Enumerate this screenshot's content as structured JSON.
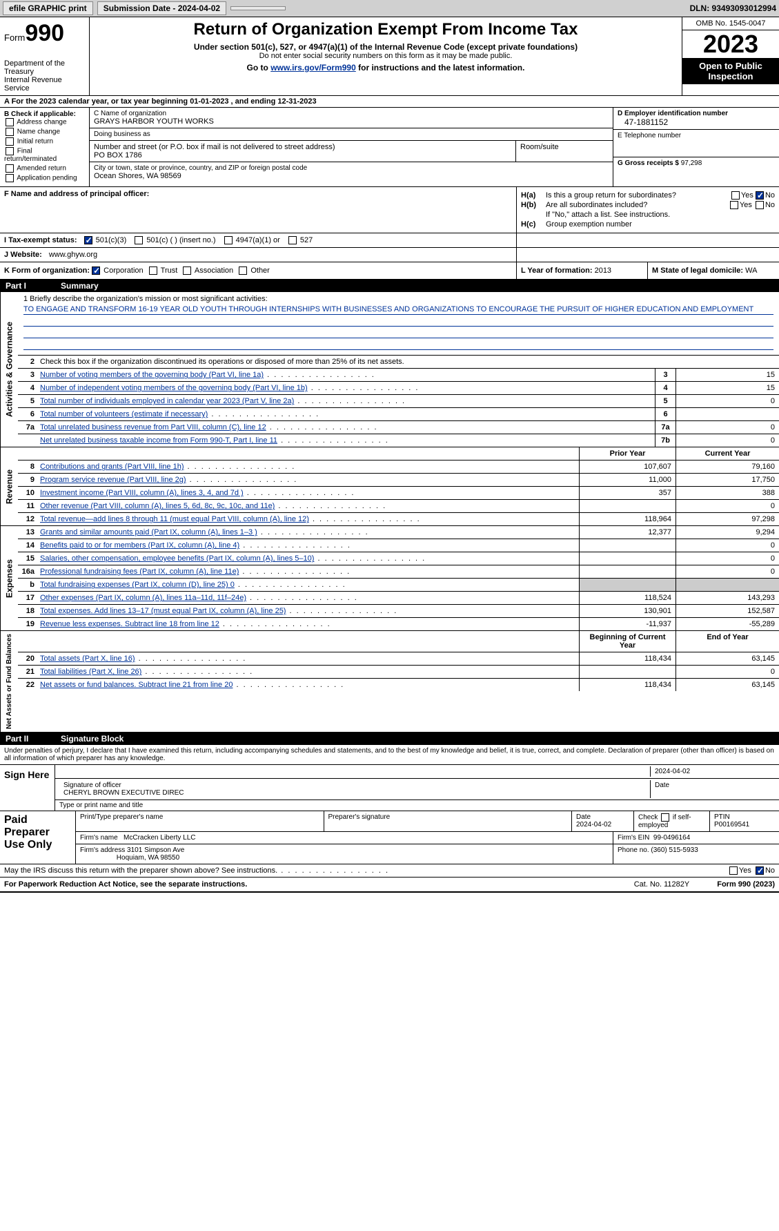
{
  "topbar": {
    "efile": "efile GRAPHIC print",
    "submission": "Submission Date - 2024-04-02",
    "dln": "DLN: 93493093012994"
  },
  "header": {
    "form_label": "Form",
    "form_num": "990",
    "dept": "Department of the Treasury\nInternal Revenue Service",
    "title": "Return of Organization Exempt From Income Tax",
    "sub1": "Under section 501(c), 527, or 4947(a)(1) of the Internal Revenue Code (except private foundations)",
    "sub2": "Do not enter social security numbers on this form as it may be made public.",
    "sub3_pre": "Go to ",
    "sub3_link": "www.irs.gov/Form990",
    "sub3_post": " for instructions and the latest information.",
    "omb": "OMB No. 1545-0047",
    "year": "2023",
    "open": "Open to Public Inspection"
  },
  "lineA": "A For the 2023 calendar year, or tax year beginning 01-01-2023    , and ending 12-31-2023",
  "sectionB": {
    "title": "B Check if applicable:",
    "items": [
      "Address change",
      "Name change",
      "Initial return",
      "Final return/terminated",
      "Amended return",
      "Application pending"
    ]
  },
  "sectionC": {
    "name_label": "C Name of organization",
    "name": "GRAYS HARBOR YOUTH WORKS",
    "dba_label": "Doing business as",
    "dba": "",
    "street_label": "Number and street (or P.O. box if mail is not delivered to street address)",
    "street": "PO BOX 1786",
    "room_label": "Room/suite",
    "room": "",
    "city_label": "City or town, state or province, country, and ZIP or foreign postal code",
    "city": "Ocean Shores, WA   98569"
  },
  "sectionD": {
    "ein_label": "D Employer identification number",
    "ein": "47-1881152",
    "tel_label": "E Telephone number",
    "tel": "",
    "gross_label": "G Gross receipts $",
    "gross": "97,298"
  },
  "sectionF": {
    "label": "F  Name and address of principal officer:",
    "value": ""
  },
  "sectionH": {
    "a_lbl": "H(a)",
    "a_txt": "Is this a group return for subordinates?",
    "a_no_checked": true,
    "b_lbl": "H(b)",
    "b_txt": "Are all subordinates included?",
    "b_note": "If \"No,\" attach a list. See instructions.",
    "c_lbl": "H(c)",
    "c_txt": "Group exemption number"
  },
  "sectionI": {
    "label": "I     Tax-exempt status:",
    "c3": "501(c)(3)",
    "c": "501(c) (  ) (insert no.)",
    "a1": "4947(a)(1) or",
    "s527": "527"
  },
  "sectionJ": {
    "label": "J     Website:",
    "value": "www.ghyw.org"
  },
  "sectionK": {
    "label": "K Form of organization:",
    "corp": "Corporation",
    "trust": "Trust",
    "assoc": "Association",
    "other": "Other"
  },
  "sectionL": {
    "label": "L Year of formation:",
    "value": "2013"
  },
  "sectionM": {
    "label": "M State of legal domicile:",
    "value": "WA"
  },
  "partI": {
    "num": "Part I",
    "title": "Summary"
  },
  "mission": {
    "label": "1   Briefly describe the organization's mission or most significant activities:",
    "text": "TO ENGAGE AND TRANSFORM 16-19 YEAR OLD YOUTH THROUGH INTERNSHIPS WITH BUSINESSES AND ORGANIZATIONS TO ENCOURAGE THE PURSUIT OF HIGHER EDUCATION AND EMPLOYMENT"
  },
  "gov_lines": {
    "l2": "Check this box      if the organization discontinued its operations or disposed of more than 25% of its net assets.",
    "l3": "Number of voting members of the governing body (Part VI, line 1a)",
    "l4": "Number of independent voting members of the governing body (Part VI, line 1b)",
    "l5": "Total number of individuals employed in calendar year 2023 (Part V, line 2a)",
    "l6": "Total number of volunteers (estimate if necessary)",
    "l7a": "Total unrelated business revenue from Part VIII, column (C), line 12",
    "l7b": "Net unrelated business taxable income from Form 990-T, Part I, line 11"
  },
  "gov_vals": {
    "3": "15",
    "4": "15",
    "5": "0",
    "6": "",
    "7a": "0",
    "7b": "0"
  },
  "col_hdrs": {
    "prior": "Prior Year",
    "current": "Current Year",
    "boy": "Beginning of Current Year",
    "eoy": "End of Year"
  },
  "revenue": [
    {
      "n": "8",
      "d": "Contributions and grants (Part VIII, line 1h)",
      "p": "107,607",
      "c": "79,160"
    },
    {
      "n": "9",
      "d": "Program service revenue (Part VIII, line 2g)",
      "p": "11,000",
      "c": "17,750"
    },
    {
      "n": "10",
      "d": "Investment income (Part VIII, column (A), lines 3, 4, and 7d )",
      "p": "357",
      "c": "388"
    },
    {
      "n": "11",
      "d": "Other revenue (Part VIII, column (A), lines 5, 6d, 8c, 9c, 10c, and 11e)",
      "p": "",
      "c": "0"
    },
    {
      "n": "12",
      "d": "Total revenue—add lines 8 through 11 (must equal Part VIII, column (A), line 12)",
      "p": "118,964",
      "c": "97,298"
    }
  ],
  "expenses": [
    {
      "n": "13",
      "d": "Grants and similar amounts paid (Part IX, column (A), lines 1–3 )",
      "p": "12,377",
      "c": "9,294"
    },
    {
      "n": "14",
      "d": "Benefits paid to or for members (Part IX, column (A), line 4)",
      "p": "",
      "c": "0"
    },
    {
      "n": "15",
      "d": "Salaries, other compensation, employee benefits (Part IX, column (A), lines 5–10)",
      "p": "",
      "c": "0"
    },
    {
      "n": "16a",
      "d": "Professional fundraising fees (Part IX, column (A), line 11e)",
      "p": "",
      "c": "0"
    },
    {
      "n": "b",
      "d": "Total fundraising expenses (Part IX, column (D), line 25) 0",
      "p": "__shade__",
      "c": "__shade__"
    },
    {
      "n": "17",
      "d": "Other expenses (Part IX, column (A), lines 11a–11d, 11f–24e)",
      "p": "118,524",
      "c": "143,293"
    },
    {
      "n": "18",
      "d": "Total expenses. Add lines 13–17 (must equal Part IX, column (A), line 25)",
      "p": "130,901",
      "c": "152,587"
    },
    {
      "n": "19",
      "d": "Revenue less expenses. Subtract line 18 from line 12",
      "p": "-11,937",
      "c": "-55,289"
    }
  ],
  "netassets": [
    {
      "n": "20",
      "d": "Total assets (Part X, line 16)",
      "p": "118,434",
      "c": "63,145"
    },
    {
      "n": "21",
      "d": "Total liabilities (Part X, line 26)",
      "p": "",
      "c": "0"
    },
    {
      "n": "22",
      "d": "Net assets or fund balances. Subtract line 21 from line 20",
      "p": "118,434",
      "c": "63,145"
    }
  ],
  "side_labels": {
    "gov": "Activities & Governance",
    "rev": "Revenue",
    "exp": "Expenses",
    "net": "Net Assets or Fund Balances"
  },
  "partII": {
    "num": "Part II",
    "title": "Signature Block"
  },
  "penalties": "Under penalties of perjury, I declare that I have examined this return, including accompanying schedules and statements, and to the best of my knowledge and belief, it is true, correct, and complete. Declaration of preparer (other than officer) is based on all information of which preparer has any knowledge.",
  "sign": {
    "here": "Sign Here",
    "sig_officer": "Signature of officer",
    "officer": "CHERYL BROWN  EXECUTIVE DIREC",
    "type_title": "Type or print name and title",
    "date_lbl": "Date",
    "date": "2024-04-02"
  },
  "preparer": {
    "title": "Paid Preparer Use Only",
    "name_lbl": "Print/Type preparer's name",
    "name": "",
    "sig_lbl": "Preparer's signature",
    "date_lbl": "Date",
    "date": "2024-04-02",
    "check_lbl": "Check       if self-employed",
    "ptin_lbl": "PTIN",
    "ptin": "P00169541",
    "firm_name_lbl": "Firm's name",
    "firm_name": "McCracken Liberty LLC",
    "firm_ein_lbl": "Firm's EIN",
    "firm_ein": "99-0496164",
    "firm_addr_lbl": "Firm's address",
    "firm_addr": "3101 Simpson Ave",
    "firm_city": "Hoquiam, WA  98550",
    "phone_lbl": "Phone no.",
    "phone": "(360) 515-5933"
  },
  "discuss": {
    "text": "May the IRS discuss this return with the preparer shown above? See instructions.",
    "no_checked": true
  },
  "footer": {
    "pra": "For Paperwork Reduction Act Notice, see the separate instructions.",
    "cat": "Cat. No. 11282Y",
    "form": "Form 990 (2023)"
  },
  "colors": {
    "link": "#003399",
    "shade": "#cccccc",
    "topbar_bg": "#d0d0d0"
  }
}
